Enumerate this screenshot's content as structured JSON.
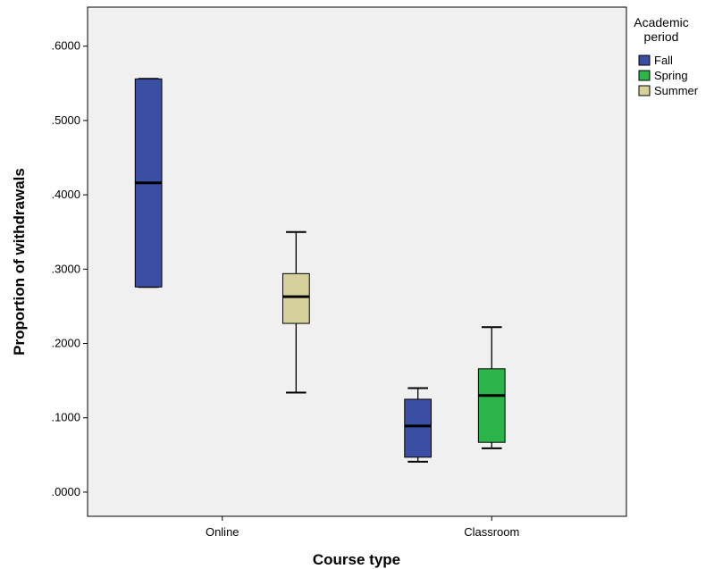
{
  "chart_data": {
    "type": "boxplot",
    "xlabel": "Course type",
    "ylabel": "Proportion of withdrawals",
    "ylim": [
      -0.0325,
      0.6525
    ],
    "yticks": [
      ".0000",
      ".1000",
      ".2000",
      ".3000",
      ".4000",
      ".5000",
      ".6000"
    ],
    "ytick_values": [
      0,
      0.1,
      0.2,
      0.3,
      0.4,
      0.5,
      0.6
    ],
    "categories": [
      "Online",
      "Classroom"
    ],
    "legend": {
      "title_line1": "Academic",
      "title_line2": "period",
      "placement": "right"
    },
    "series": [
      {
        "name": "Fall",
        "color": "#3a4fa3"
      },
      {
        "name": "Spring",
        "color": "#2bb54a"
      },
      {
        "name": "Summer",
        "color": "#d6d19a"
      }
    ],
    "boxes": [
      {
        "category": "Online",
        "series": "Fall",
        "min": 0.276,
        "q1": 0.276,
        "median": 0.416,
        "q3": 0.556,
        "max": 0.556
      },
      {
        "category": "Online",
        "series": "Summer",
        "min": 0.134,
        "q1": 0.227,
        "median": 0.263,
        "q3": 0.294,
        "max": 0.35
      },
      {
        "category": "Classroom",
        "series": "Fall",
        "min": 0.041,
        "q1": 0.047,
        "median": 0.089,
        "q3": 0.125,
        "max": 0.14
      },
      {
        "category": "Classroom",
        "series": "Spring",
        "min": 0.059,
        "q1": 0.067,
        "median": 0.13,
        "q3": 0.166,
        "max": 0.222
      }
    ],
    "plot_background": "#f0f0f0",
    "grid": false
  }
}
